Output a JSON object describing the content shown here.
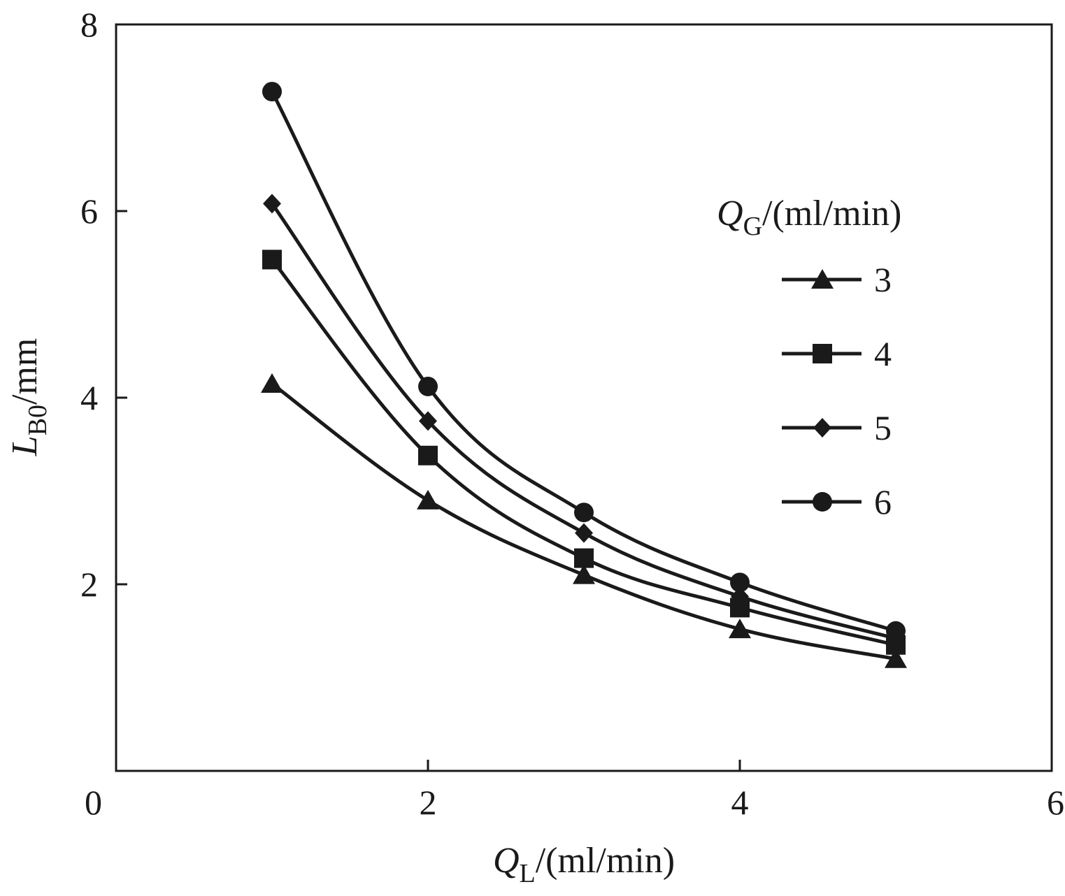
{
  "chart_data": {
    "type": "line",
    "title": "",
    "xlabel": {
      "main": "Q",
      "sub": "L",
      "unit": "/(ml/min)"
    },
    "ylabel": {
      "main": "L",
      "sub": "B0",
      "unit": "/mm"
    },
    "xlim": [
      0,
      6
    ],
    "ylim": [
      0,
      8
    ],
    "xticks": [
      0,
      2,
      4,
      6
    ],
    "yticks": [
      2,
      4,
      6,
      8
    ],
    "x_tick_labels": [
      "0",
      "2",
      "4",
      "6"
    ],
    "y_tick_labels": [
      "2",
      "4",
      "6",
      "8"
    ],
    "grid": false,
    "legend": {
      "position": "right",
      "title": {
        "main": "Q",
        "sub": "G",
        "unit": "/(ml/min)"
      }
    },
    "x": [
      1,
      2,
      3,
      4,
      5
    ],
    "series": [
      {
        "name": "3",
        "marker": "triangle",
        "values": [
          4.15,
          2.9,
          2.1,
          1.52,
          1.2
        ]
      },
      {
        "name": "4",
        "marker": "square",
        "values": [
          5.48,
          3.38,
          2.28,
          1.75,
          1.35
        ]
      },
      {
        "name": "5",
        "marker": "diamond",
        "values": [
          6.08,
          3.75,
          2.55,
          1.87,
          1.42
        ]
      },
      {
        "name": "6",
        "marker": "circle",
        "values": [
          7.28,
          4.12,
          2.77,
          2.02,
          1.5
        ]
      }
    ]
  }
}
